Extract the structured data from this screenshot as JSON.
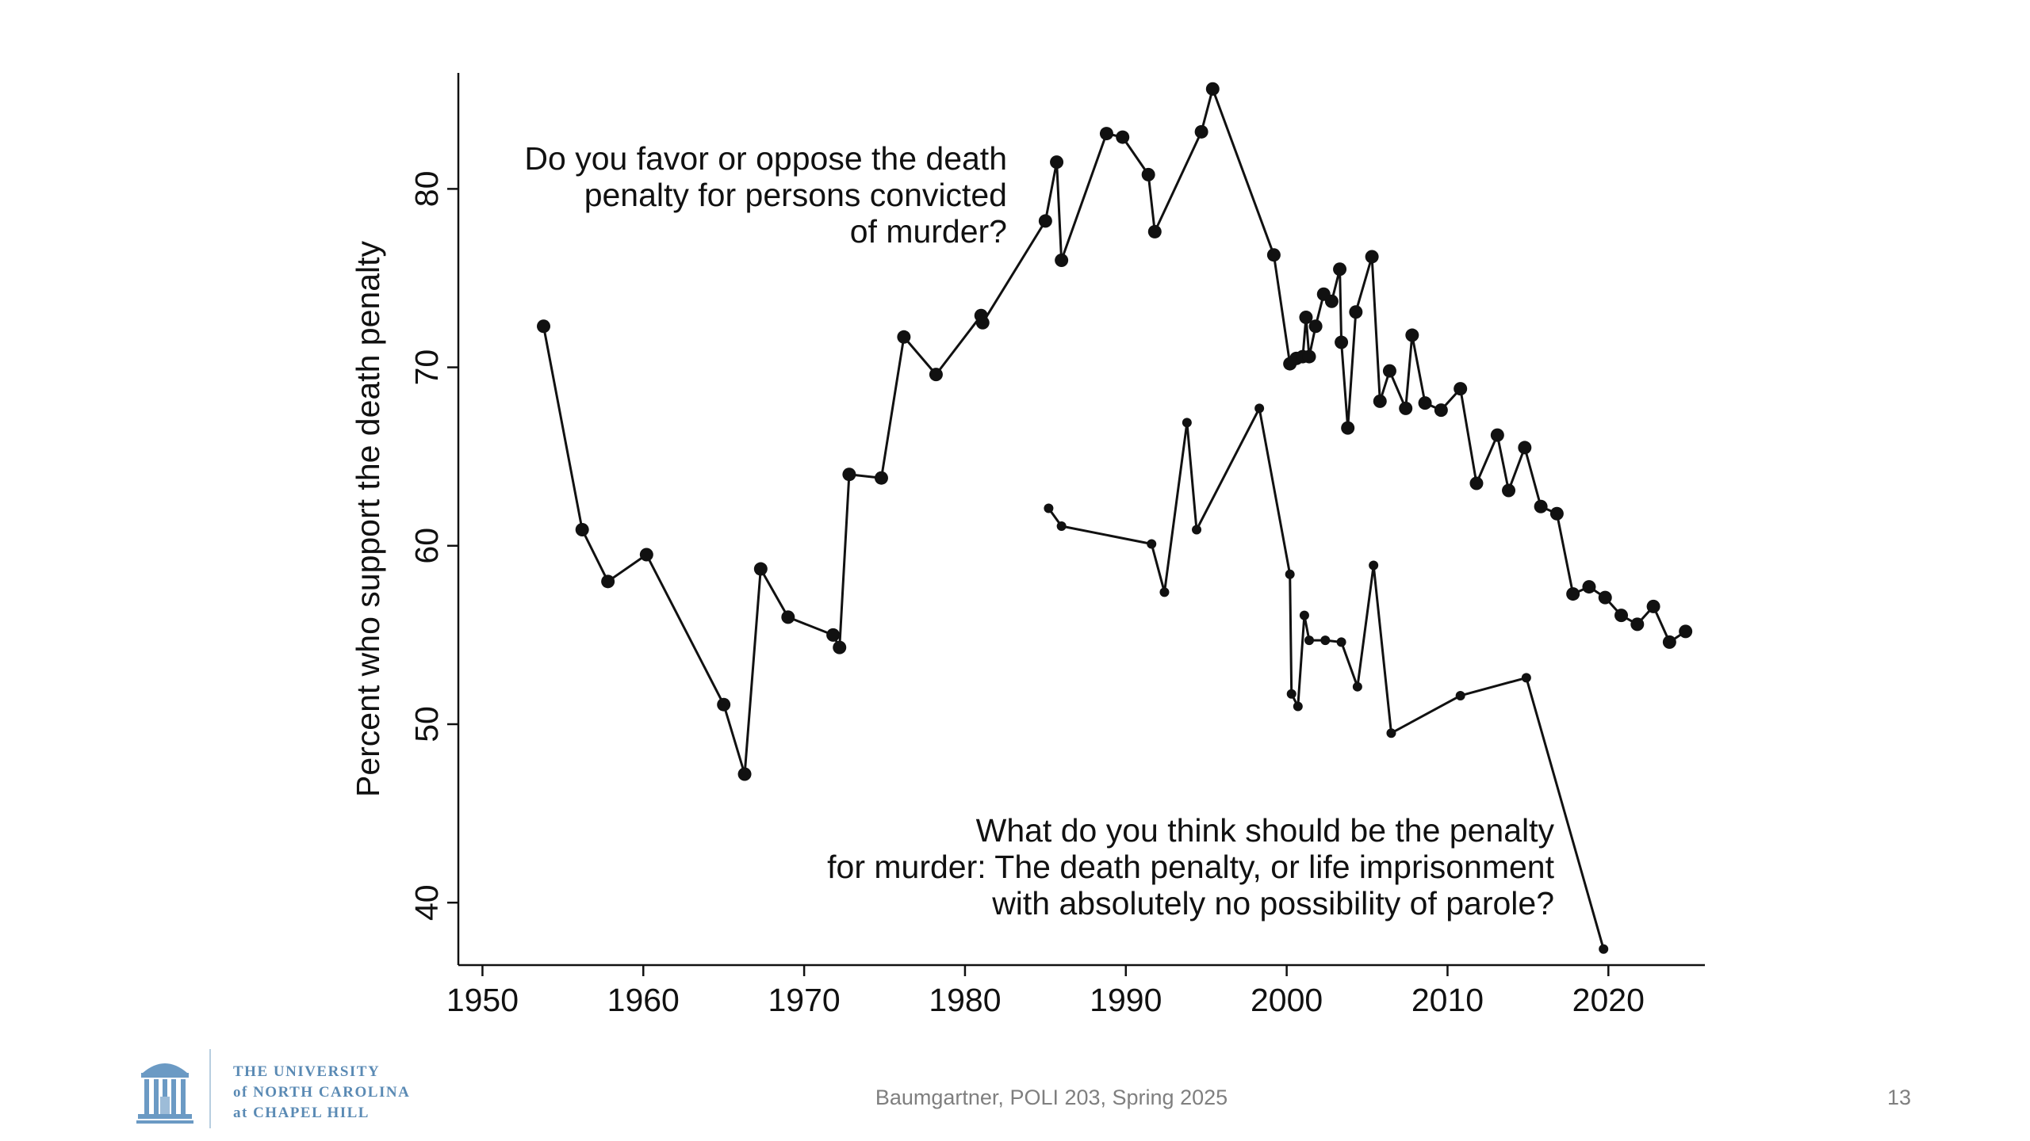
{
  "chart_data": {
    "type": "line",
    "ylabel": "Percent who support the death penalty",
    "xlabel": "",
    "xlim": [
      1948.5,
      2026
    ],
    "ylim": [
      36.5,
      86.5
    ],
    "xticks": [
      1950,
      1960,
      1970,
      1980,
      1990,
      2000,
      2010,
      2020
    ],
    "yticks": [
      40,
      50,
      60,
      70,
      80
    ],
    "grid": false,
    "legend": "none",
    "annotations": [
      {
        "lines": [
          "Do you favor or oppose the death",
          "penalty for persons convicted",
          "of murder?"
        ]
      },
      {
        "lines": [
          "What do you think should be the penalty",
          "for murder: The death penalty, or life imprisonment",
          "with absolutely no possibility of parole?"
        ]
      }
    ],
    "series": [
      {
        "marker": "large",
        "points": [
          [
            1953.8,
            72.3
          ],
          [
            1956.2,
            60.9
          ],
          [
            1957.8,
            58.0
          ],
          [
            1960.2,
            59.5
          ],
          [
            1965.0,
            51.1
          ],
          [
            1966.3,
            47.2
          ],
          [
            1967.3,
            58.7
          ],
          [
            1969.0,
            56.0
          ],
          [
            1971.8,
            55.0
          ],
          [
            1972.2,
            54.3
          ],
          [
            1972.8,
            64.0
          ],
          [
            1974.8,
            63.8
          ],
          [
            1976.2,
            71.7
          ],
          [
            1978.2,
            69.6
          ],
          [
            1981.0,
            72.9
          ],
          [
            1981.1,
            72.5
          ],
          [
            1985.0,
            78.2
          ],
          [
            1985.7,
            81.5
          ],
          [
            1986.0,
            76.0
          ],
          [
            1988.8,
            83.1
          ],
          [
            1989.8,
            82.9
          ],
          [
            1991.4,
            80.8
          ],
          [
            1991.8,
            77.6
          ],
          [
            1994.7,
            83.2
          ],
          [
            1995.4,
            85.6
          ],
          [
            1999.2,
            76.3
          ],
          [
            2000.2,
            70.2
          ],
          [
            2000.6,
            70.5
          ],
          [
            2001.0,
            70.6
          ],
          [
            2001.2,
            72.8
          ],
          [
            2001.4,
            70.6
          ],
          [
            2001.8,
            72.3
          ],
          [
            2002.3,
            74.1
          ],
          [
            2002.8,
            73.7
          ],
          [
            2003.3,
            75.5
          ],
          [
            2003.4,
            71.4
          ],
          [
            2003.8,
            66.6
          ],
          [
            2004.3,
            73.1
          ],
          [
            2005.3,
            76.2
          ],
          [
            2005.8,
            68.1
          ],
          [
            2006.4,
            69.8
          ],
          [
            2007.4,
            67.7
          ],
          [
            2007.8,
            71.8
          ],
          [
            2008.6,
            68.0
          ],
          [
            2009.6,
            67.6
          ],
          [
            2010.8,
            68.8
          ],
          [
            2011.8,
            63.5
          ],
          [
            2013.1,
            66.2
          ],
          [
            2013.8,
            63.1
          ],
          [
            2014.8,
            65.5
          ],
          [
            2015.8,
            62.2
          ],
          [
            2016.8,
            61.8
          ],
          [
            2017.8,
            57.3
          ],
          [
            2018.8,
            57.7
          ],
          [
            2019.8,
            57.1
          ],
          [
            2020.8,
            56.1
          ],
          [
            2021.8,
            55.6
          ],
          [
            2022.8,
            56.6
          ],
          [
            2023.8,
            54.6
          ],
          [
            2024.8,
            55.2
          ]
        ]
      },
      {
        "marker": "small",
        "points": [
          [
            1985.2,
            62.1
          ],
          [
            1986.0,
            61.1
          ],
          [
            1991.6,
            60.1
          ],
          [
            1992.4,
            57.4
          ],
          [
            1993.8,
            66.9
          ],
          [
            1994.4,
            60.9
          ],
          [
            1998.3,
            67.7
          ],
          [
            2000.2,
            58.4
          ],
          [
            2000.3,
            51.7
          ],
          [
            2000.7,
            51.0
          ],
          [
            2001.1,
            56.1
          ],
          [
            2001.4,
            54.7
          ],
          [
            2002.4,
            54.7
          ],
          [
            2003.4,
            54.6
          ],
          [
            2004.4,
            52.1
          ],
          [
            2005.4,
            58.9
          ],
          [
            2006.5,
            49.5
          ],
          [
            2010.8,
            51.6
          ],
          [
            2014.9,
            52.6
          ],
          [
            2019.7,
            37.4
          ]
        ]
      }
    ]
  },
  "footer": {
    "text": "Baumgartner, POLI 203, Spring 2025",
    "page_number": "13"
  },
  "logo": {
    "line1": "THE UNIVERSITY",
    "line2": "of NORTH CAROLINA",
    "line3": "at CHAPEL HILL"
  }
}
